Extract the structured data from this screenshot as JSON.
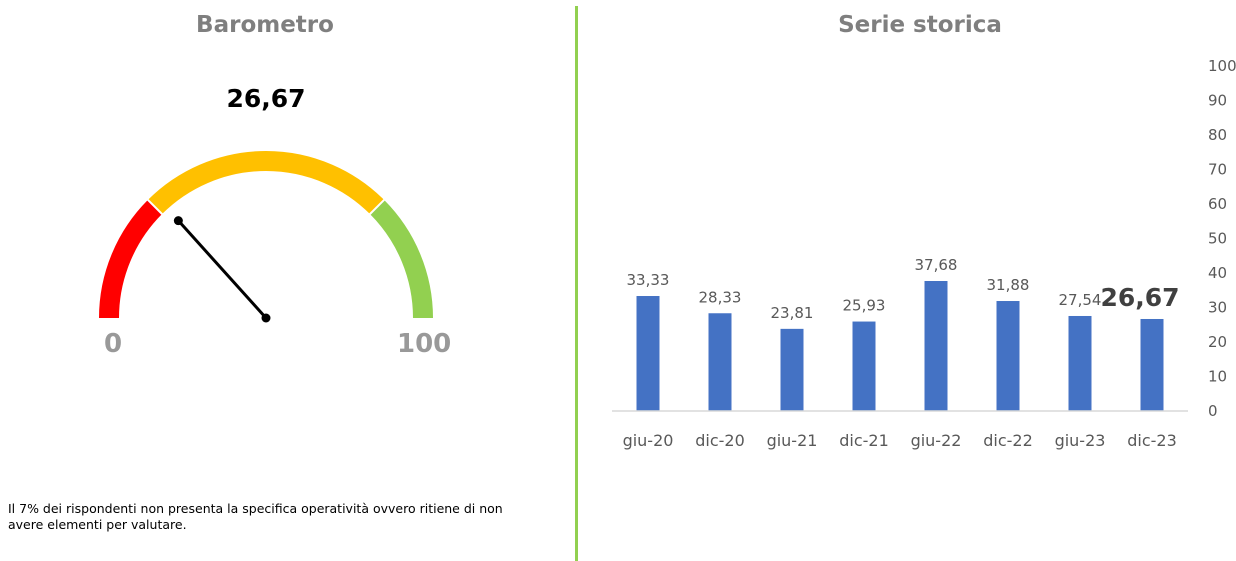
{
  "gauge": {
    "title": "Barometro",
    "value_label": "26,67",
    "value": 26.67,
    "min_label": "0",
    "max_label": "100",
    "min": 0,
    "max": 100,
    "bands": [
      {
        "from": 0,
        "to": 25,
        "color": "#ff0000"
      },
      {
        "from": 25,
        "to": 75,
        "color": "#ffc000"
      },
      {
        "from": 75,
        "to": 100,
        "color": "#92d050"
      }
    ]
  },
  "note": "Il 7% dei rispondenti non presenta la specifica operatività ovvero ritiene di non avere elementi per valutare.",
  "colors": {
    "bar": "#4472c4",
    "divider": "#92d050",
    "needle": "#000000"
  },
  "chart_data": {
    "type": "bar",
    "title": "Serie storica",
    "categories": [
      "giu-20",
      "dic-20",
      "giu-21",
      "dic-21",
      "giu-22",
      "dic-22",
      "giu-23",
      "dic-23"
    ],
    "values": [
      33.33,
      28.33,
      23.81,
      25.93,
      37.68,
      31.88,
      27.54,
      26.67
    ],
    "data_labels": [
      "33,33",
      "28,33",
      "23,81",
      "25,93",
      "37,68",
      "31,88",
      "27,54",
      "26,67"
    ],
    "ylim": [
      0,
      100
    ],
    "yticks": [
      "0",
      "10",
      "20",
      "30",
      "40",
      "50",
      "60",
      "70",
      "80",
      "90",
      "100"
    ],
    "y_axis_position": "right",
    "grid": false,
    "legend": "none"
  }
}
